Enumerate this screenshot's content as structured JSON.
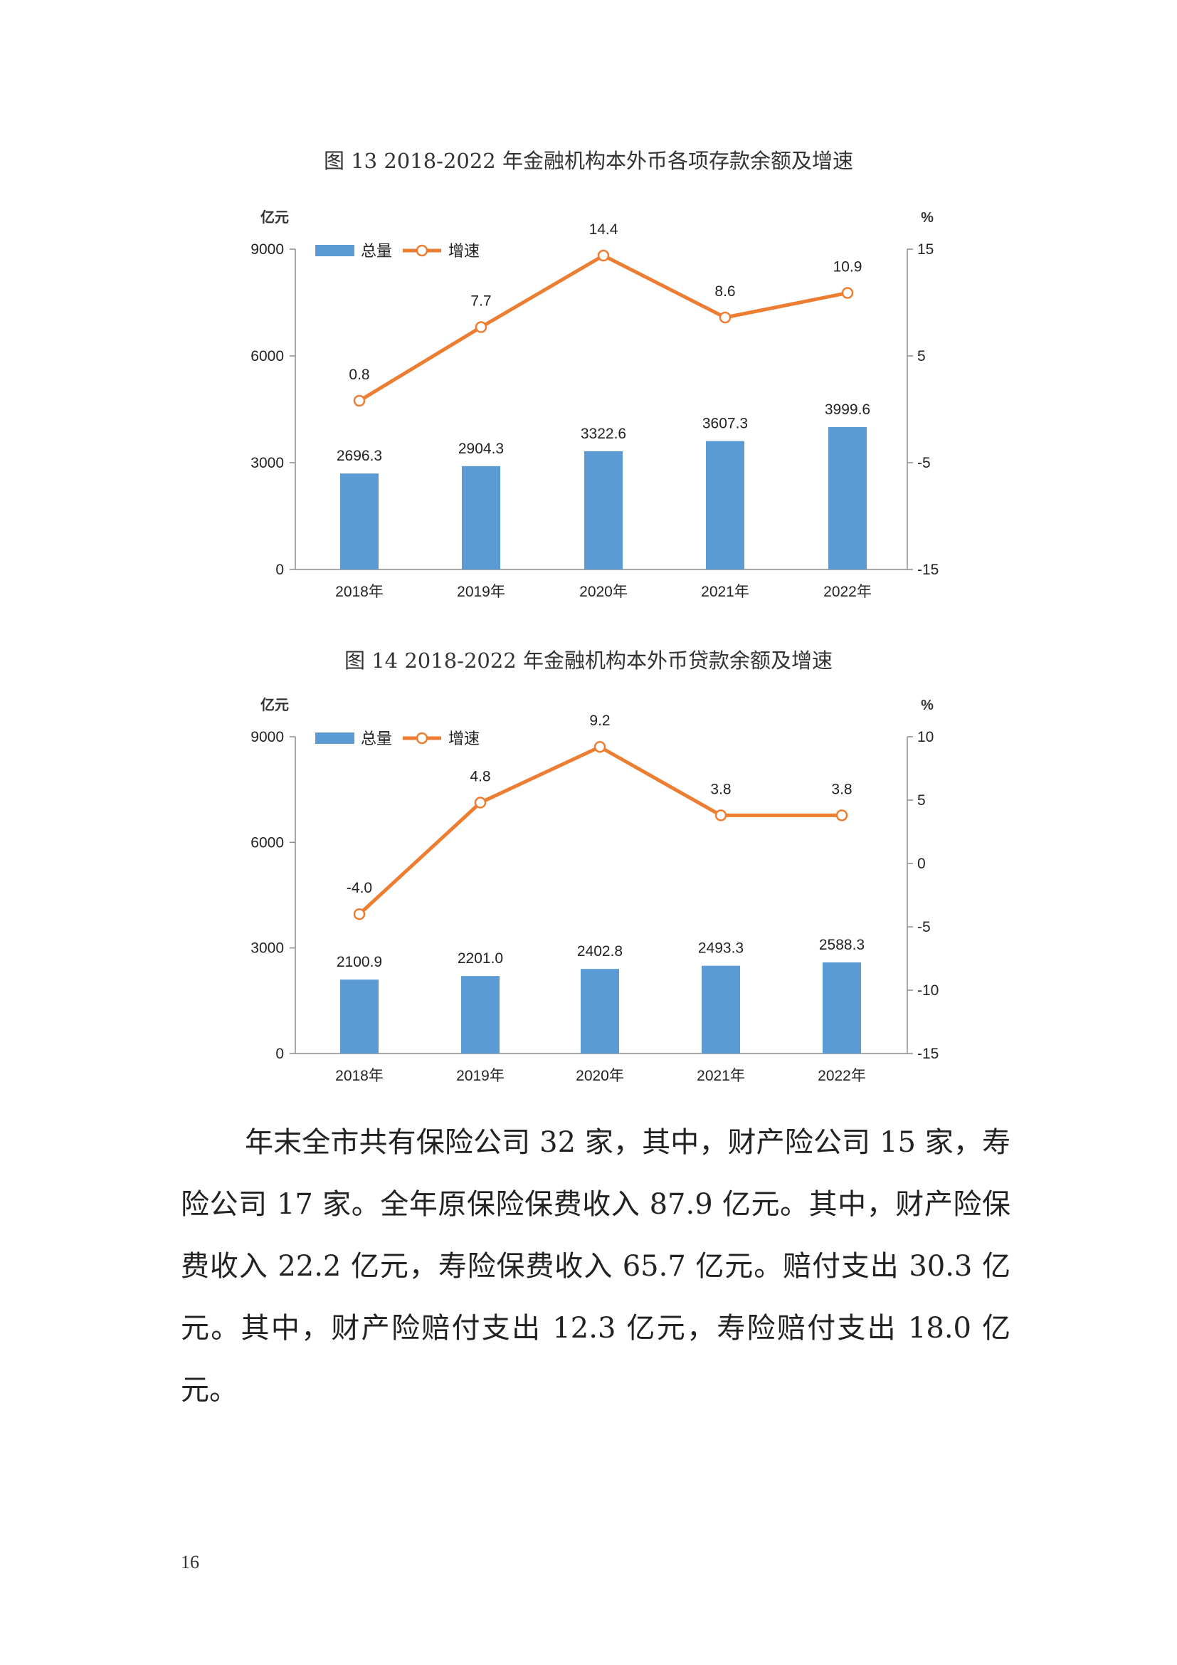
{
  "charts": [
    {
      "caption": "图 13  2018-2022 年金融机构本外币各项存款余额及增速",
      "chart_data": {
        "type": "bar",
        "categories": [
          "2018年",
          "2019年",
          "2020年",
          "2021年",
          "2022年"
        ],
        "series": [
          {
            "name": "总量",
            "type": "bar",
            "axis": "left",
            "values": [
              2696.3,
              2904.3,
              3322.6,
              3607.3,
              3999.6
            ],
            "labels": [
              "2696.3",
              "2904.3",
              "3322.6",
              "3607.3",
              "3999.6"
            ],
            "color": "#5B9BD5"
          },
          {
            "name": "增速",
            "type": "line",
            "axis": "right",
            "values": [
              0.8,
              7.7,
              14.4,
              8.6,
              10.9
            ],
            "labels": [
              "0.8",
              "7.7",
              "14.4",
              "8.6",
              "10.9"
            ],
            "color": "#ED7D31"
          }
        ],
        "yleft": {
          "unit": "亿元",
          "min": 0,
          "max": 9000,
          "ticks": [
            0,
            3000,
            6000,
            9000
          ]
        },
        "yright": {
          "unit": "%",
          "min": -15,
          "max": 15,
          "ticks": [
            -15,
            -5,
            5,
            15
          ]
        },
        "legend": "top-left",
        "grid": false
      }
    },
    {
      "caption": "图 14  2018-2022 年金融机构本外币贷款余额及增速",
      "chart_data": {
        "type": "bar",
        "categories": [
          "2018年",
          "2019年",
          "2020年",
          "2021年",
          "2022年"
        ],
        "series": [
          {
            "name": "总量",
            "type": "bar",
            "axis": "left",
            "values": [
              2100.9,
              2201.0,
              2402.8,
              2493.3,
              2588.3
            ],
            "labels": [
              "2100.9",
              "2201.0",
              "2402.8",
              "2493.3",
              "2588.3"
            ],
            "color": "#5B9BD5"
          },
          {
            "name": "增速",
            "type": "line",
            "axis": "right",
            "values": [
              -4.0,
              4.8,
              9.2,
              3.8,
              3.8
            ],
            "labels": [
              "-4.0",
              "4.8",
              "9.2",
              "3.8",
              "3.8"
            ],
            "color": "#ED7D31"
          }
        ],
        "yleft": {
          "unit": "亿元",
          "min": 0,
          "max": 9000,
          "ticks": [
            0,
            3000,
            6000,
            9000
          ]
        },
        "yright": {
          "unit": "%",
          "min": -15,
          "max": 10,
          "ticks": [
            -15,
            -10,
            -5,
            0,
            5,
            10
          ]
        },
        "legend": "top-left",
        "grid": false
      }
    }
  ],
  "paragraph": "年末全市共有保险公司 32 家，其中，财产险公司 15 家，寿险公司 17 家。全年原保险保费收入 87.9 亿元。其中，财产险保费收入 22.2 亿元，寿险保费收入 65.7 亿元。赔付支出 30.3 亿元。其中，财产险赔付支出 12.3 亿元，寿险赔付支出 18.0 亿元。",
  "page_number": "16"
}
